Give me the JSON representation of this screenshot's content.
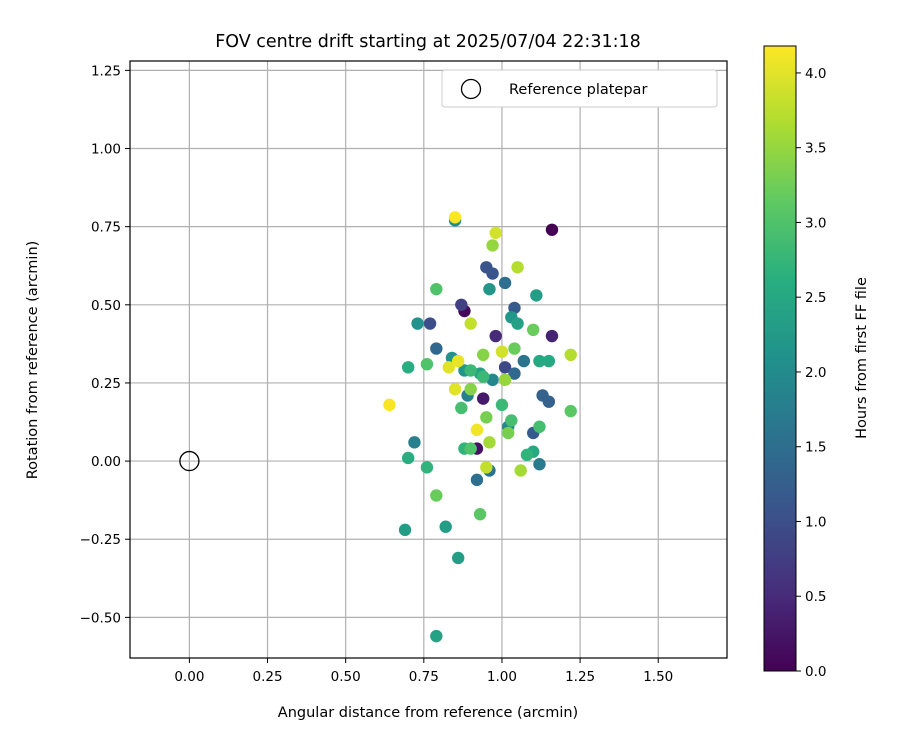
{
  "chart_data": {
    "type": "scatter",
    "title": "FOV centre drift starting at 2025/07/04 22:31:18",
    "xlabel": "Angular distance from reference (arcmin)",
    "ylabel": "Rotation from reference (arcmin)",
    "xlim": [
      -0.19,
      1.72
    ],
    "ylim": [
      -0.63,
      1.28
    ],
    "xticks": [
      0.0,
      0.25,
      0.5,
      0.75,
      1.0,
      1.25,
      1.5
    ],
    "xtick_labels": [
      "0.00",
      "0.25",
      "0.50",
      "0.75",
      "1.00",
      "1.25",
      "1.50"
    ],
    "yticks": [
      -0.5,
      -0.25,
      0.0,
      0.25,
      0.5,
      0.75,
      1.0,
      1.25
    ],
    "ytick_labels": [
      "−0.50",
      "−0.25",
      "0.00",
      "0.25",
      "0.50",
      "0.75",
      "1.00",
      "1.25"
    ],
    "grid": true,
    "colormap": "viridis",
    "colorbar": {
      "label": "Hours from first FF file",
      "range": [
        0.0,
        4.18
      ],
      "ticks": [
        0.0,
        0.5,
        1.0,
        1.5,
        2.0,
        2.5,
        3.0,
        3.5,
        4.0
      ],
      "tick_labels": [
        "0.0",
        "0.5",
        "1.0",
        "1.5",
        "2.0",
        "2.5",
        "3.0",
        "3.5",
        "4.0"
      ]
    },
    "reference": {
      "name": "Reference platepar",
      "x": 0.0,
      "y": 0.0
    },
    "legend_position": "top-right",
    "points": [
      [
        1.16,
        0.74,
        0.0
      ],
      [
        0.88,
        0.48,
        0.1
      ],
      [
        0.92,
        0.04,
        0.2
      ],
      [
        0.94,
        0.2,
        0.3
      ],
      [
        1.16,
        0.4,
        0.4
      ],
      [
        0.98,
        0.4,
        0.5
      ],
      [
        0.87,
        0.5,
        0.8
      ],
      [
        1.01,
        0.3,
        0.9
      ],
      [
        0.77,
        0.44,
        1.0
      ],
      [
        0.95,
        0.62,
        1.1
      ],
      [
        0.97,
        0.6,
        1.1
      ],
      [
        1.04,
        0.49,
        1.2
      ],
      [
        1.1,
        0.09,
        1.2
      ],
      [
        1.13,
        0.21,
        1.3
      ],
      [
        1.15,
        0.19,
        1.3
      ],
      [
        1.04,
        0.28,
        1.4
      ],
      [
        0.79,
        0.36,
        1.4
      ],
      [
        0.92,
        -0.06,
        1.5
      ],
      [
        1.01,
        0.57,
        1.5
      ],
      [
        0.96,
        -0.03,
        1.6
      ],
      [
        1.07,
        0.32,
        1.6
      ],
      [
        1.12,
        -0.01,
        1.7
      ],
      [
        0.72,
        0.06,
        1.8
      ],
      [
        0.89,
        0.21,
        1.8
      ],
      [
        0.97,
        0.26,
        1.9
      ],
      [
        1.02,
        0.11,
        1.9
      ],
      [
        0.85,
        0.77,
        2.0
      ],
      [
        0.73,
        0.44,
        2.1
      ],
      [
        0.84,
        0.33,
        2.1
      ],
      [
        0.88,
        0.29,
        2.2
      ],
      [
        0.96,
        0.55,
        2.2
      ],
      [
        1.03,
        0.46,
        2.2
      ],
      [
        1.11,
        0.53,
        2.3
      ],
      [
        0.69,
        -0.22,
        2.3
      ],
      [
        0.82,
        -0.21,
        2.3
      ],
      [
        0.86,
        -0.31,
        2.3
      ],
      [
        0.79,
        -0.56,
        2.4
      ],
      [
        0.93,
        0.28,
        2.4
      ],
      [
        1.05,
        0.44,
        2.4
      ],
      [
        1.12,
        0.32,
        2.5
      ],
      [
        1.15,
        0.32,
        2.5
      ],
      [
        1.1,
        0.03,
        2.5
      ],
      [
        0.7,
        0.01,
        2.6
      ],
      [
        0.7,
        0.3,
        2.6
      ],
      [
        0.76,
        -0.02,
        2.7
      ],
      [
        0.88,
        0.04,
        2.7
      ],
      [
        1.08,
        0.02,
        2.7
      ],
      [
        0.9,
        0.29,
        2.8
      ],
      [
        0.94,
        0.27,
        2.8
      ],
      [
        1.0,
        0.18,
        2.8
      ],
      [
        1.03,
        0.13,
        2.9
      ],
      [
        0.87,
        0.17,
        2.9
      ],
      [
        1.12,
        0.11,
        2.9
      ],
      [
        0.76,
        0.31,
        3.0
      ],
      [
        0.79,
        0.55,
        3.0
      ],
      [
        0.9,
        0.04,
        3.0
      ],
      [
        0.93,
        -0.17,
        3.1
      ],
      [
        1.22,
        0.16,
        3.1
      ],
      [
        1.04,
        0.36,
        3.2
      ],
      [
        1.1,
        0.42,
        3.2
      ],
      [
        0.79,
        -0.11,
        3.2
      ],
      [
        0.95,
        0.14,
        3.3
      ],
      [
        1.02,
        0.09,
        3.3
      ],
      [
        0.9,
        0.23,
        3.4
      ],
      [
        0.94,
        0.34,
        3.4
      ],
      [
        0.97,
        0.69,
        3.5
      ],
      [
        1.01,
        0.26,
        3.5
      ],
      [
        0.96,
        0.06,
        3.6
      ],
      [
        1.06,
        -0.03,
        3.6
      ],
      [
        1.05,
        0.62,
        3.7
      ],
      [
        1.22,
        0.34,
        3.7
      ],
      [
        0.9,
        0.44,
        3.8
      ],
      [
        0.95,
        -0.02,
        3.8
      ],
      [
        1.0,
        0.35,
        3.9
      ],
      [
        0.98,
        0.73,
        3.9
      ],
      [
        0.83,
        0.3,
        4.0
      ],
      [
        0.85,
        0.23,
        4.0
      ],
      [
        0.86,
        0.32,
        4.05
      ],
      [
        0.92,
        0.1,
        4.1
      ],
      [
        0.64,
        0.18,
        4.15
      ],
      [
        0.85,
        0.78,
        4.18
      ]
    ]
  }
}
